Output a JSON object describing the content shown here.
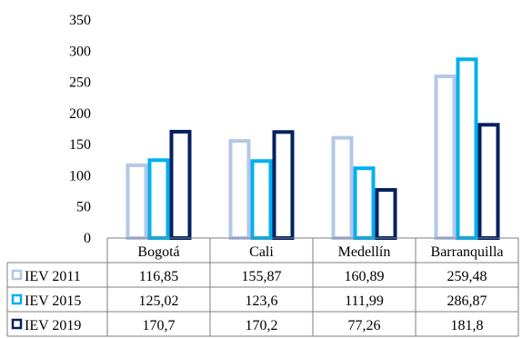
{
  "chart_data": {
    "type": "bar",
    "title": "",
    "xlabel": "",
    "ylabel": "",
    "ylim": [
      0,
      350
    ],
    "yticks": [
      0,
      50,
      100,
      150,
      200,
      250,
      300,
      350
    ],
    "grid": false,
    "legend": "data-table-left",
    "categories": [
      "Bogotá",
      "Cali",
      "Medellín",
      "Barranquilla"
    ],
    "series": [
      {
        "name": "IEV 2011",
        "color": "#b4c7e7",
        "values": [
          116.85,
          155.87,
          160.89,
          259.48
        ],
        "labels": [
          "116,85",
          "155,87",
          "160,89",
          "259,48"
        ]
      },
      {
        "name": "IEV 2015",
        "color": "#00b0f0",
        "values": [
          125.02,
          123.6,
          111.99,
          286.87
        ],
        "labels": [
          "125,02",
          "123,6",
          "111,99",
          "286,87"
        ]
      },
      {
        "name": "IEV 2019",
        "color": "#002060",
        "values": [
          170.7,
          170.2,
          77.26,
          181.8
        ],
        "labels": [
          "170,7",
          "170,2",
          "77,26",
          "181,8"
        ]
      }
    ]
  }
}
